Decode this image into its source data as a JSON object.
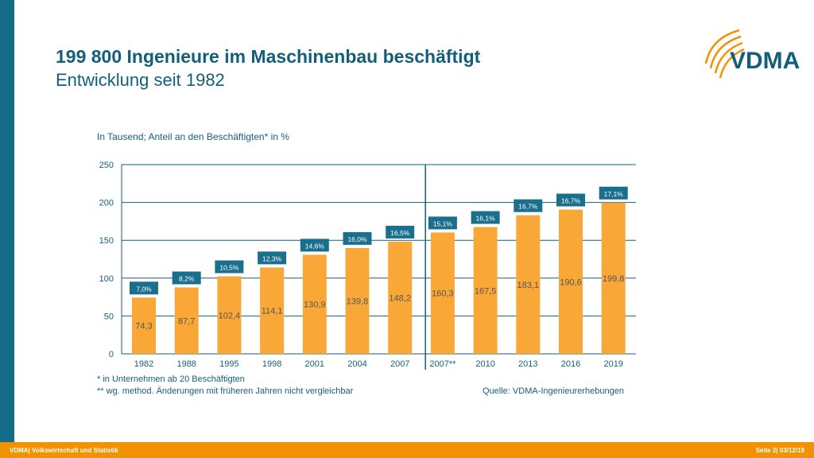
{
  "title": "199 800 Ingenieure im Maschinenbau beschäftigt",
  "subtitle": "Entwicklung seit 1982",
  "logo_text": "VDMA",
  "footer": {
    "left": "VDMA| Volkswirtschaft und Statistik",
    "right": "Seite 2| 03/12/19"
  },
  "footnotes": {
    "star": "*  in Unternehmen ab 20 Beschäftigten",
    "double_star": "** wg. method. Änderungen mit früheren Jahren nicht vergleichbar",
    "source": "Quelle: VDMA-Ingenieurerhebungen"
  },
  "colors": {
    "bar": "#f9a838",
    "label_box": "#1a6f8c",
    "axis": "#135f7a"
  },
  "chart_data": {
    "type": "bar",
    "ylabel": "In Tausend; Anteil an den Beschäftigten* in %",
    "ylim": [
      0,
      250
    ],
    "yticks": [
      "0",
      "50",
      "100",
      "150",
      "200",
      "250"
    ],
    "grid": true,
    "categories": [
      "1982",
      "1988",
      "1995",
      "1998",
      "2001",
      "2004",
      "2007",
      "2007**",
      "2010",
      "2013",
      "2016",
      "2019"
    ],
    "values": [
      74.3,
      87.7,
      102.4,
      114.1,
      130.9,
      139.8,
      148.2,
      160.3,
      167.5,
      183.1,
      190.6,
      199.8
    ],
    "value_labels": [
      "74,3",
      "87,7",
      "102,4",
      "114,1",
      "130,9",
      "139,8",
      "148,2",
      "160,3",
      "167,5",
      "183,1",
      "190,6",
      "199,8"
    ],
    "share_labels": [
      "7,0%",
      "8,2%",
      "10,5%",
      "12,3%",
      "14,6%",
      "16,0%",
      "16,5%",
      "15,1%",
      "16,1%",
      "16,7%",
      "16,7%",
      "17,1%"
    ],
    "divider_after": "2007"
  }
}
